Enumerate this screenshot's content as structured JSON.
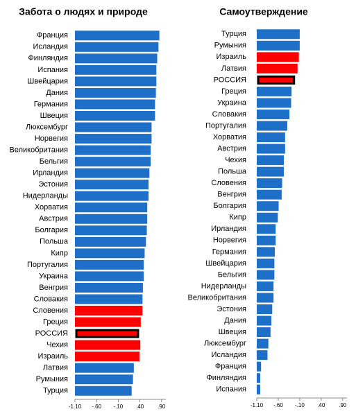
{
  "chart_data": [
    {
      "type": "bar",
      "orientation": "horizontal",
      "title": "Забота о людях и природе",
      "categories": [
        "Франция",
        "Исландия",
        "Финляндия",
        "Испания",
        "Швейцария",
        "Дания",
        "Германия",
        "Швеция",
        "Люксембург",
        "Норвегия",
        "Великобритания",
        "Бельгия",
        "Ирландия",
        "Эстония",
        "Нидерланды",
        "Хорватия",
        "Австрия",
        "Болгария",
        "Польша",
        "Кипр",
        "Португалия",
        "Украина",
        "Венгрия",
        "Словакия",
        "Словения",
        "Греция",
        "РОССИЯ",
        "Чехия",
        "Израиль",
        "Латвия",
        "Румыния",
        "Турция"
      ],
      "values": [
        0.85,
        0.83,
        0.8,
        0.78,
        0.78,
        0.77,
        0.75,
        0.75,
        0.67,
        0.67,
        0.65,
        0.65,
        0.62,
        0.6,
        0.6,
        0.57,
        0.57,
        0.56,
        0.54,
        0.51,
        0.49,
        0.49,
        0.47,
        0.46,
        0.46,
        0.42,
        0.39,
        0.41,
        0.39,
        0.26,
        0.24,
        0.21
      ],
      "colors": [
        "#1e6fc8",
        "#1e6fc8",
        "#1e6fc8",
        "#1e6fc8",
        "#1e6fc8",
        "#1e6fc8",
        "#1e6fc8",
        "#1e6fc8",
        "#1e6fc8",
        "#1e6fc8",
        "#1e6fc8",
        "#1e6fc8",
        "#1e6fc8",
        "#1e6fc8",
        "#1e6fc8",
        "#1e6fc8",
        "#1e6fc8",
        "#1e6fc8",
        "#1e6fc8",
        "#1e6fc8",
        "#1e6fc8",
        "#1e6fc8",
        "#1e6fc8",
        "#1e6fc8",
        "#ff0000",
        "#ff0000",
        "#ff0000",
        "#ff0000",
        "#ff0000",
        "#1e6fc8",
        "#1e6fc8",
        "#1e6fc8"
      ],
      "outline_category": "РОССИЯ",
      "xlim": [
        -1.1,
        1.0
      ],
      "xticks": [
        {
          "value": -1.1,
          "label": "-1.10"
        },
        {
          "value": -0.6,
          "label": "-.60"
        },
        {
          "value": -0.1,
          "label": "-.10"
        },
        {
          "value": 0.4,
          "label": ".40"
        },
        {
          "value": 0.9,
          "label": ".90"
        }
      ]
    },
    {
      "type": "bar",
      "orientation": "horizontal",
      "title": "Самоутверждение",
      "categories": [
        "Турция",
        "Румыния",
        "Израиль",
        "Латвия",
        "РОССИЯ",
        "Греция",
        "Украина",
        "Словакия",
        "Португалия",
        "Хорватия",
        "Австрия",
        "Чехия",
        "Польша",
        "Словения",
        "Венгрия",
        "Болгария",
        "Кипр",
        "Ирландия",
        "Норвегия",
        "Германия",
        "Швейцария",
        "Бельгия",
        "Нидерланды",
        "Великобритания",
        "Эстония",
        "Дания",
        "Швеция",
        "Люксембург",
        "Исландия",
        "Франция",
        "Финляндия",
        "Испания"
      ],
      "values": [
        -0.1,
        -0.1,
        -0.12,
        -0.15,
        -0.2,
        -0.29,
        -0.3,
        -0.34,
        -0.39,
        -0.44,
        -0.44,
        -0.47,
        -0.47,
        -0.51,
        -0.52,
        -0.59,
        -0.61,
        -0.66,
        -0.66,
        -0.68,
        -0.69,
        -0.69,
        -0.71,
        -0.71,
        -0.74,
        -0.76,
        -0.78,
        -0.83,
        -0.85,
        -1.0,
        -1.02,
        -1.02
      ],
      "colors": [
        "#1e6fc8",
        "#1e6fc8",
        "#ff0000",
        "#ff0000",
        "#ff0000",
        "#1e6fc8",
        "#1e6fc8",
        "#1e6fc8",
        "#1e6fc8",
        "#1e6fc8",
        "#1e6fc8",
        "#1e6fc8",
        "#1e6fc8",
        "#1e6fc8",
        "#1e6fc8",
        "#1e6fc8",
        "#1e6fc8",
        "#1e6fc8",
        "#1e6fc8",
        "#1e6fc8",
        "#1e6fc8",
        "#1e6fc8",
        "#1e6fc8",
        "#1e6fc8",
        "#1e6fc8",
        "#1e6fc8",
        "#1e6fc8",
        "#1e6fc8",
        "#1e6fc8",
        "#1e6fc8",
        "#1e6fc8",
        "#1e6fc8"
      ],
      "outline_category": "РОССИЯ",
      "xlim": [
        -1.1,
        1.0
      ],
      "xticks": [
        {
          "value": -1.1,
          "label": "-1.10"
        },
        {
          "value": -0.6,
          "label": "-.60"
        },
        {
          "value": -0.1,
          "label": "-.10"
        },
        {
          "value": 0.4,
          "label": ".40"
        },
        {
          "value": 0.9,
          "label": ".90"
        }
      ]
    }
  ]
}
